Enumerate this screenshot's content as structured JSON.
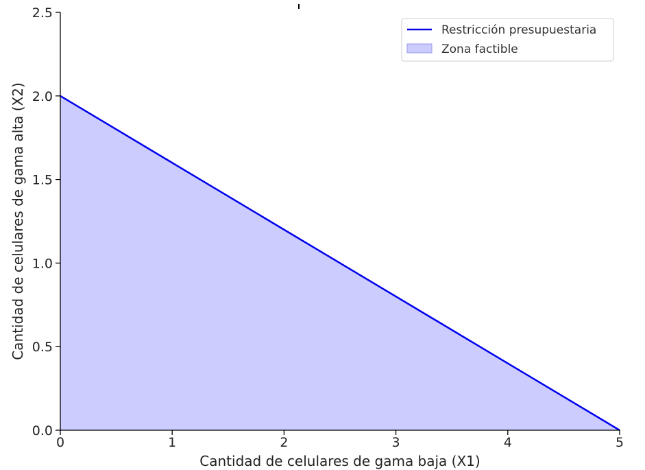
{
  "chart_data": {
    "type": "area",
    "xlabel": "Cantidad de celulares de gama baja (X1)",
    "ylabel": "Cantidad de celulares de gama alta (X2)",
    "xlim": [
      0,
      5
    ],
    "ylim": [
      0,
      2.5
    ],
    "x_ticks": [
      "0",
      "1",
      "2",
      "3",
      "4",
      "5"
    ],
    "y_ticks": [
      "0.0",
      "0.5",
      "1.0",
      "1.5",
      "2.0",
      "2.5"
    ],
    "grid": false,
    "legend_position": "top-right",
    "series": [
      {
        "name": "Restricción presupuestaria",
        "kind": "line",
        "color": "#0000ee",
        "x": [
          0,
          5
        ],
        "y": [
          2.0,
          0.0
        ]
      },
      {
        "name": "Zona factible",
        "kind": "fill",
        "color": "#ccccff",
        "x": [
          0,
          5
        ],
        "y": [
          2.0,
          0.0
        ],
        "baseline": 0
      }
    ]
  }
}
